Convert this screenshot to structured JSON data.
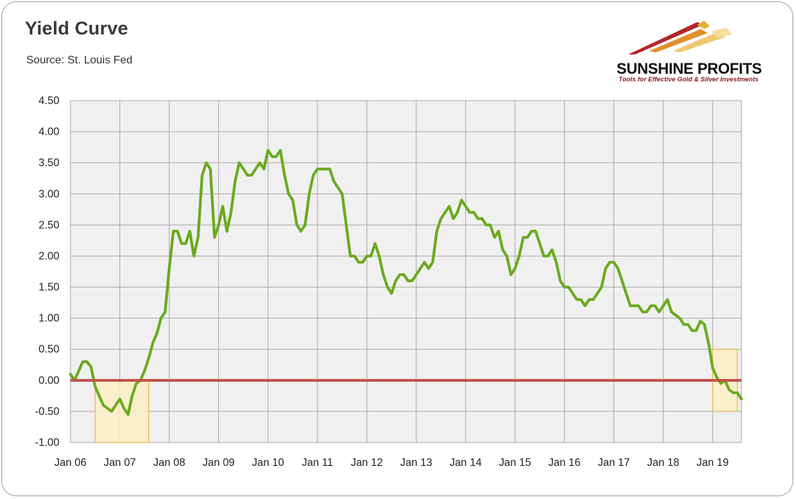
{
  "header": {
    "title": "Yield Curve",
    "source": "Source: St. Louis Fed"
  },
  "logo": {
    "brand": "SUNSHINE PROFITS",
    "tagline": "Tools for Effective Gold & Silver Investments"
  },
  "colors": {
    "series": "#6aaa1e",
    "zero_line": "#c0504d",
    "plot_bg": "#f0f0f0",
    "grid": "#a6a6a6",
    "highlight_fill": "#fcefc4",
    "highlight_stroke": "#e0b84a"
  },
  "chart_data": {
    "type": "line",
    "title": "Yield Curve",
    "xlabel": "",
    "ylabel": "",
    "x_tick_labels": [
      "Jan 06",
      "Jan 07",
      "Jan 08",
      "Jan 09",
      "Jan 10",
      "Jan 11",
      "Jan 12",
      "Jan 13",
      "Jan 14",
      "Jan 15",
      "Jan 16",
      "Jan 17",
      "Jan 18",
      "Jan 19"
    ],
    "y_tick_labels": [
      "4.50",
      "4.00",
      "3.50",
      "3.00",
      "2.50",
      "2.00",
      "1.50",
      "1.00",
      "0.50",
      "0.00",
      "-0.50",
      "-1.00"
    ],
    "xlim": [
      "2006-01",
      "2019-08"
    ],
    "ylim": [
      -1.0,
      4.5
    ],
    "grid": true,
    "legend": "none",
    "reference_line": {
      "y": 0.0
    },
    "highlighted_periods": [
      {
        "x_start": "2006-07",
        "x_end": "2007-08",
        "y_low": -1.0,
        "y_high": 0.0
      },
      {
        "x_start": "2019-01",
        "x_end": "2019-07",
        "y_low": -0.5,
        "y_high": 0.5
      }
    ],
    "series": [
      {
        "x": [
          "2006-01",
          "2006-02",
          "2006-03",
          "2006-04",
          "2006-05",
          "2006-06",
          "2006-07",
          "2006-08",
          "2006-09",
          "2006-10",
          "2006-11",
          "2006-12",
          "2007-01",
          "2007-02",
          "2007-03",
          "2007-04",
          "2007-05",
          "2007-06",
          "2007-07",
          "2007-08",
          "2007-09",
          "2007-10",
          "2007-11",
          "2007-12",
          "2008-01",
          "2008-02",
          "2008-03",
          "2008-04",
          "2008-05",
          "2008-06",
          "2008-07",
          "2008-08",
          "2008-09",
          "2008-10",
          "2008-11",
          "2008-12",
          "2009-01",
          "2009-02",
          "2009-03",
          "2009-04",
          "2009-05",
          "2009-06",
          "2009-07",
          "2009-08",
          "2009-09",
          "2009-10",
          "2009-11",
          "2009-12",
          "2010-01",
          "2010-02",
          "2010-03",
          "2010-04",
          "2010-05",
          "2010-06",
          "2010-07",
          "2010-08",
          "2010-09",
          "2010-10",
          "2010-11",
          "2010-12",
          "2011-01",
          "2011-02",
          "2011-03",
          "2011-04",
          "2011-05",
          "2011-06",
          "2011-07",
          "2011-08",
          "2011-09",
          "2011-10",
          "2011-11",
          "2011-12",
          "2012-01",
          "2012-02",
          "2012-03",
          "2012-04",
          "2012-05",
          "2012-06",
          "2012-07",
          "2012-08",
          "2012-09",
          "2012-10",
          "2012-11",
          "2012-12",
          "2013-01",
          "2013-02",
          "2013-03",
          "2013-04",
          "2013-05",
          "2013-06",
          "2013-07",
          "2013-08",
          "2013-09",
          "2013-10",
          "2013-11",
          "2013-12",
          "2014-01",
          "2014-02",
          "2014-03",
          "2014-04",
          "2014-05",
          "2014-06",
          "2014-07",
          "2014-08",
          "2014-09",
          "2014-10",
          "2014-11",
          "2014-12",
          "2015-01",
          "2015-02",
          "2015-03",
          "2015-04",
          "2015-05",
          "2015-06",
          "2015-07",
          "2015-08",
          "2015-09",
          "2015-10",
          "2015-11",
          "2015-12",
          "2016-01",
          "2016-02",
          "2016-03",
          "2016-04",
          "2016-05",
          "2016-06",
          "2016-07",
          "2016-08",
          "2016-09",
          "2016-10",
          "2016-11",
          "2016-12",
          "2017-01",
          "2017-02",
          "2017-03",
          "2017-04",
          "2017-05",
          "2017-06",
          "2017-07",
          "2017-08",
          "2017-09",
          "2017-10",
          "2017-11",
          "2017-12",
          "2018-01",
          "2018-02",
          "2018-03",
          "2018-04",
          "2018-05",
          "2018-06",
          "2018-07",
          "2018-08",
          "2018-09",
          "2018-10",
          "2018-11",
          "2018-12",
          "2019-01",
          "2019-02",
          "2019-03",
          "2019-04",
          "2019-05",
          "2019-06",
          "2019-07",
          "2019-08"
        ],
        "values": [
          0.1,
          0.0,
          0.15,
          0.3,
          0.3,
          0.22,
          -0.1,
          -0.25,
          -0.4,
          -0.45,
          -0.5,
          -0.4,
          -0.3,
          -0.45,
          -0.55,
          -0.25,
          -0.05,
          0.0,
          0.15,
          0.35,
          0.6,
          0.75,
          1.0,
          1.1,
          1.8,
          2.4,
          2.4,
          2.2,
          2.2,
          2.4,
          2.0,
          2.3,
          3.3,
          3.5,
          3.4,
          2.3,
          2.5,
          2.8,
          2.4,
          2.7,
          3.2,
          3.5,
          3.4,
          3.3,
          3.3,
          3.4,
          3.5,
          3.4,
          3.7,
          3.6,
          3.6,
          3.7,
          3.3,
          3.0,
          2.9,
          2.5,
          2.4,
          2.5,
          3.0,
          3.3,
          3.4,
          3.4,
          3.4,
          3.4,
          3.2,
          3.1,
          3.0,
          2.5,
          2.0,
          2.0,
          1.9,
          1.9,
          2.0,
          2.0,
          2.2,
          2.0,
          1.7,
          1.5,
          1.4,
          1.6,
          1.7,
          1.7,
          1.6,
          1.6,
          1.7,
          1.8,
          1.9,
          1.8,
          1.9,
          2.4,
          2.6,
          2.7,
          2.8,
          2.6,
          2.7,
          2.9,
          2.8,
          2.7,
          2.7,
          2.6,
          2.6,
          2.5,
          2.5,
          2.3,
          2.4,
          2.1,
          2.0,
          1.7,
          1.8,
          2.0,
          2.3,
          2.3,
          2.4,
          2.4,
          2.2,
          2.0,
          2.0,
          2.1,
          1.9,
          1.6,
          1.5,
          1.5,
          1.4,
          1.3,
          1.3,
          1.2,
          1.3,
          1.3,
          1.4,
          1.5,
          1.8,
          1.9,
          1.9,
          1.8,
          1.6,
          1.4,
          1.2,
          1.2,
          1.2,
          1.1,
          1.1,
          1.2,
          1.2,
          1.1,
          1.2,
          1.3,
          1.1,
          1.05,
          1.0,
          0.9,
          0.9,
          0.8,
          0.8,
          0.95,
          0.9,
          0.6,
          0.2,
          0.05,
          -0.05,
          0.0,
          -0.15,
          -0.2,
          -0.2,
          -0.3
        ]
      }
    ]
  }
}
